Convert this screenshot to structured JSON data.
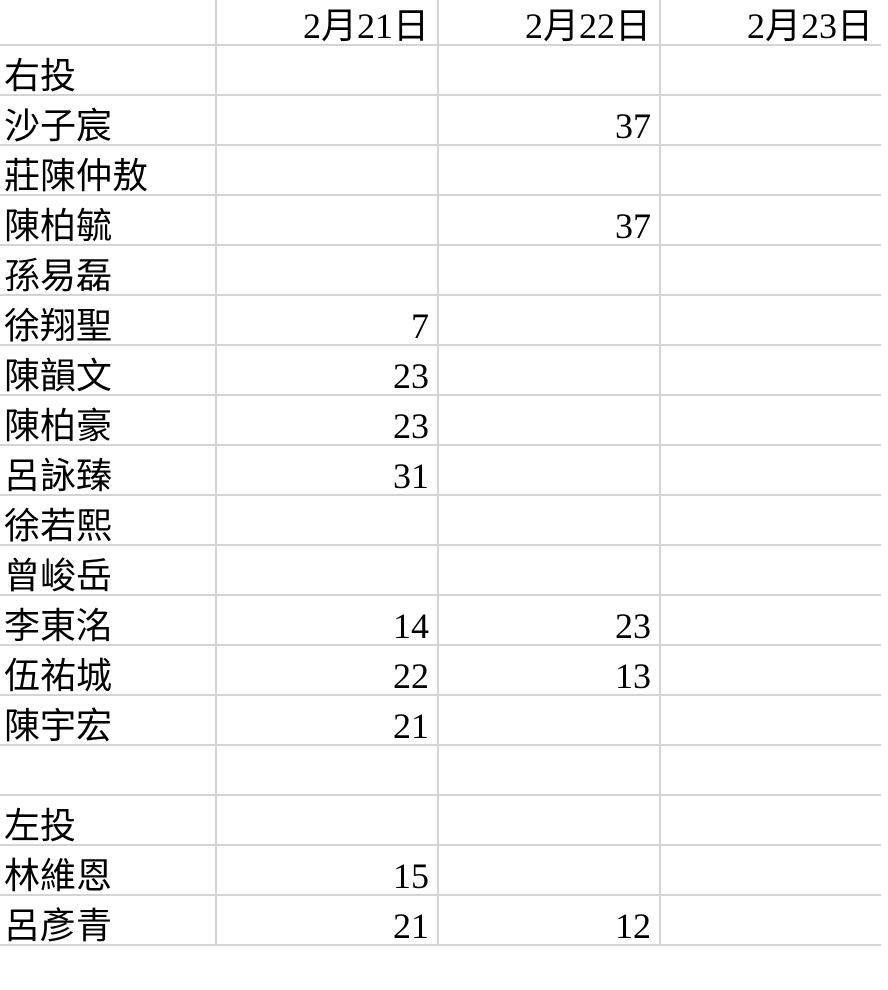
{
  "header": [
    "",
    "2月21日",
    "2月22日",
    "2月23日"
  ],
  "rows": [
    [
      "右投",
      "",
      "",
      ""
    ],
    [
      "沙子宸",
      "",
      "37",
      ""
    ],
    [
      "莊陳仲敖",
      "",
      "",
      ""
    ],
    [
      "陳柏毓",
      "",
      "37",
      ""
    ],
    [
      "孫易磊",
      "",
      "",
      ""
    ],
    [
      "徐翔聖",
      "7",
      "",
      ""
    ],
    [
      "陳韻文",
      "23",
      "",
      ""
    ],
    [
      "陳柏豪",
      "23",
      "",
      ""
    ],
    [
      "呂詠臻",
      "31",
      "",
      ""
    ],
    [
      "徐若熙",
      "",
      "",
      ""
    ],
    [
      "曾峻岳",
      "",
      "",
      ""
    ],
    [
      "李東洺",
      "14",
      "23",
      ""
    ],
    [
      "伍祐城",
      "22",
      "13",
      ""
    ],
    [
      "陳宇宏",
      "21",
      "",
      ""
    ],
    [
      "",
      "",
      "",
      ""
    ],
    [
      "左投",
      "",
      "",
      ""
    ],
    [
      "林維恩",
      "15",
      "",
      ""
    ],
    [
      "呂彥青",
      "21",
      "12",
      ""
    ]
  ]
}
